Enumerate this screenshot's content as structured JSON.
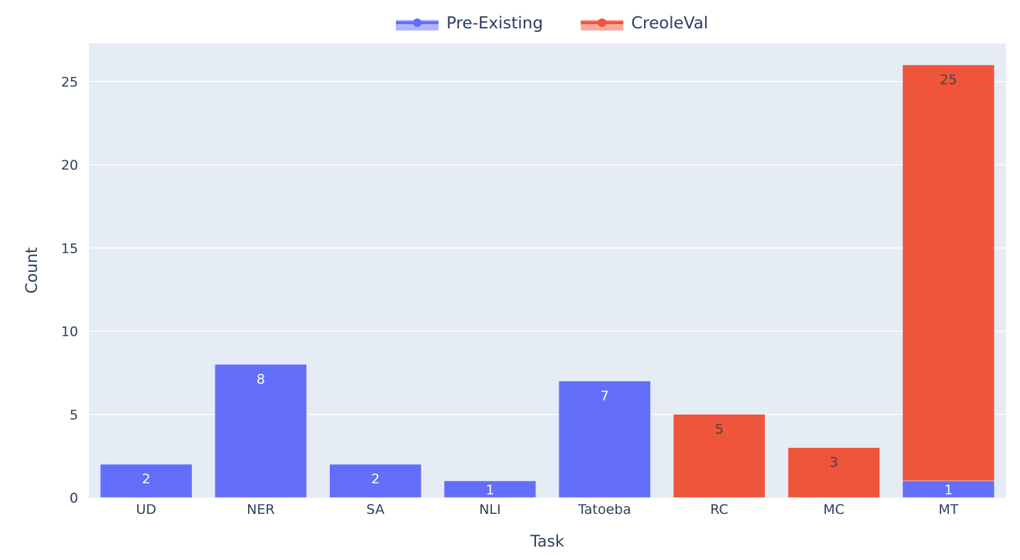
{
  "chart_data": {
    "type": "bar",
    "barmode": "stack",
    "categories": [
      "UD",
      "NER",
      "SA",
      "NLI",
      "Tatoeba",
      "RC",
      "MC",
      "MT"
    ],
    "series": [
      {
        "name": "Pre-Existing",
        "color": "#636efa",
        "values": [
          2,
          8,
          2,
          1,
          7,
          0,
          0,
          1
        ],
        "labels": [
          "2",
          "8",
          "2",
          "1",
          "7",
          "",
          "",
          "1"
        ]
      },
      {
        "name": "CreoleVal",
        "color": "#ef553b",
        "values": [
          0,
          0,
          0,
          0,
          0,
          5,
          3,
          25
        ],
        "labels": [
          "",
          "",
          "",
          "",
          "",
          "5",
          "3",
          "25"
        ]
      }
    ],
    "xlabel": "Task",
    "ylabel": "Count",
    "ylim": [
      0,
      27.3
    ],
    "yticks": [
      0,
      5,
      10,
      15,
      20,
      25
    ],
    "grid": true,
    "legend_position": "top-center",
    "plot_background": "#e5ecf6"
  }
}
